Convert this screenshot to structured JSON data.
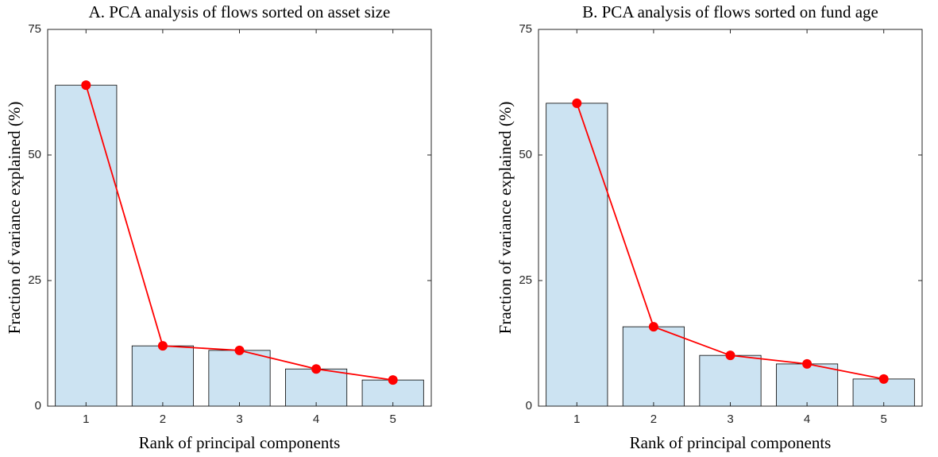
{
  "chart_data": [
    {
      "type": "bar",
      "title": "A. PCA analysis of flows sorted on asset size",
      "xlabel": "Rank of principal components",
      "ylabel": "Fraction of variance explained (%)",
      "categories": [
        "1",
        "2",
        "3",
        "4",
        "5"
      ],
      "values": [
        63.9,
        12.0,
        11.1,
        7.4,
        5.2
      ],
      "color": "#cce3f2",
      "overlay_line": true,
      "line_color": "#ff0000",
      "ylim": [
        0,
        75
      ],
      "yticks": [
        0,
        25,
        50,
        75
      ]
    },
    {
      "type": "bar",
      "title": "B. PCA analysis of flows sorted on fund age",
      "xlabel": "Rank of principal components",
      "ylabel": "Fraction of variance explained (%)",
      "categories": [
        "1",
        "2",
        "3",
        "4",
        "5"
      ],
      "values": [
        60.3,
        15.8,
        10.1,
        8.4,
        5.4
      ],
      "color": "#cce3f2",
      "overlay_line": true,
      "line_color": "#ff0000",
      "ylim": [
        0,
        75
      ],
      "yticks": [
        0,
        25,
        50,
        75
      ]
    }
  ]
}
